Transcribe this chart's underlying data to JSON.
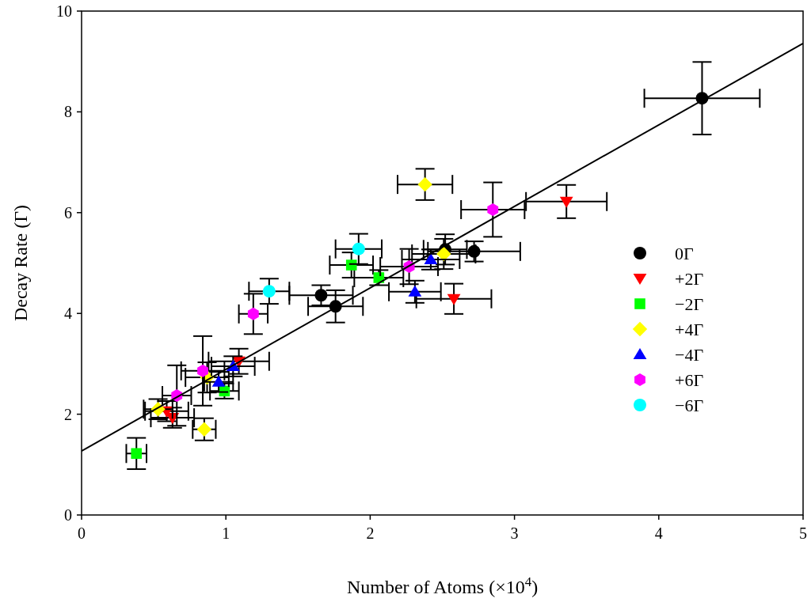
{
  "chart_data": {
    "type": "scatter",
    "xlabel": "Number of Atoms (×10$^{4}$)",
    "ylabel": "Decay Rate (Γ)",
    "xlim": [
      0,
      5
    ],
    "ylim": [
      0,
      10
    ],
    "xticks": [
      0,
      1,
      2,
      3,
      4,
      5
    ],
    "yticks": [
      0,
      2,
      4,
      6,
      8,
      10
    ],
    "grid": false,
    "legend": "right",
    "series": [
      {
        "name": "0Γ",
        "color": "#000000",
        "marker": "circle",
        "x": [
          4.3,
          1.66,
          1.76,
          2.52,
          2.72
        ],
        "values": [
          8.27,
          4.36,
          4.14,
          5.27,
          5.23
        ],
        "xerrors": [
          0.4,
          0.22,
          0.19,
          0.15,
          0.32
        ],
        "errors": [
          0.72,
          0.2,
          0.32,
          0.3,
          0.2
        ]
      },
      {
        "name": "+2Γ",
        "color": "#ff0000",
        "marker": "triangle_down",
        "x": [
          3.36,
          2.58,
          1.09,
          0.63,
          0.59
        ],
        "values": [
          6.22,
          4.29,
          3.05,
          1.93,
          2.06
        ],
        "xerrors": [
          0.28,
          0.26,
          0.21,
          0.15,
          0.15
        ],
        "errors": [
          0.33,
          0.3,
          0.25,
          0.2,
          0.2
        ]
      },
      {
        "name": "−2Γ",
        "color": "#00ff00",
        "marker": "square",
        "x": [
          0.38,
          0.99,
          1.87,
          2.06
        ],
        "values": [
          1.22,
          2.46,
          4.96,
          4.71
        ],
        "xerrors": [
          0.07,
          0.1,
          0.15,
          0.17
        ],
        "errors": [
          0.31,
          0.15,
          0.25,
          0.15
        ]
      },
      {
        "name": "+4Γ",
        "color": "#ffff00",
        "marker": "diamond",
        "x": [
          2.38,
          2.51,
          0.85,
          0.53,
          0.87
        ],
        "values": [
          6.56,
          5.18,
          1.7,
          2.1,
          2.73
        ],
        "xerrors": [
          0.19,
          0.22,
          0.08,
          0.1,
          0.15
        ],
        "errors": [
          0.31,
          0.3,
          0.22,
          0.2,
          0.3
        ]
      },
      {
        "name": "−4Γ",
        "color": "#0000ff",
        "marker": "triangle",
        "x": [
          2.42,
          2.31,
          1.05,
          0.95
        ],
        "values": [
          5.07,
          4.43,
          2.95,
          2.64
        ],
        "xerrors": [
          0.2,
          0.18,
          0.15,
          0.1
        ],
        "errors": [
          0.2,
          0.22,
          0.2,
          0.2
        ]
      },
      {
        "name": "+6Γ",
        "color": "#ff00ff",
        "x": [
          2.85,
          2.27,
          1.19,
          0.84,
          0.66
        ],
        "values": [
          6.06,
          4.93,
          3.99,
          2.86,
          2.37
        ],
        "xerrors": [
          0.22,
          0.2,
          0.1,
          0.15,
          0.1
        ],
        "errors": [
          0.54,
          0.35,
          0.4,
          0.69,
          0.6
        ]
      },
      {
        "name": "−6Γ",
        "color": "#00ffff",
        "marker": "circle",
        "x": [
          1.92,
          1.3
        ],
        "values": [
          5.28,
          4.44
        ],
        "xerrors": [
          0.16,
          0.14
        ],
        "errors": [
          0.3,
          0.25
        ]
      },
      {
        "type": "line",
        "color": "#000000",
        "marker": "none",
        "line_style": "solid",
        "x": [
          0,
          5
        ],
        "values": [
          1.27,
          9.36
        ]
      }
    ]
  }
}
